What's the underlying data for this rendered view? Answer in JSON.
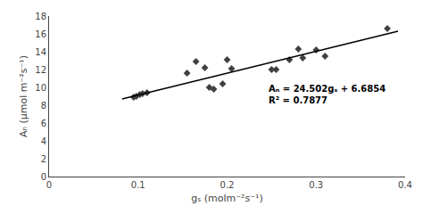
{
  "chart_data": {
    "type": "scatter",
    "xlabel": "gₛ (molm⁻²s⁻¹)",
    "ylabel": "Aₙ (μmol m⁻²s⁻¹)",
    "series": [
      {
        "type": "scatter",
        "marker": "diamond",
        "color": "#404040",
        "x": [
          0.095,
          0.098,
          0.102,
          0.105,
          0.11,
          0.155,
          0.165,
          0.175,
          0.18,
          0.185,
          0.195,
          0.2,
          0.205,
          0.25,
          0.255,
          0.27,
          0.28,
          0.285,
          0.3,
          0.31,
          0.38
        ],
        "values": [
          8.9,
          9.0,
          9.2,
          9.3,
          9.4,
          11.6,
          12.9,
          12.2,
          10.0,
          9.8,
          10.4,
          13.1,
          12.1,
          12.0,
          12.0,
          13.1,
          14.3,
          13.3,
          14.2,
          13.5,
          16.6
        ]
      },
      {
        "type": "line",
        "line_style": "solid",
        "color": "#000000",
        "x": [
          0.082,
          0.392
        ],
        "values": [
          8.694564,
          16.290184
        ]
      }
    ],
    "annotations": [
      {
        "text": [
          "Aₙ = 24.502gₛ + 6.6854",
          "R² = 0.7877"
        ],
        "x": 0.245,
        "y": 7.8
      }
    ],
    "xlim": [
      0,
      0.4
    ],
    "ylim": [
      0,
      18
    ],
    "xticks": [
      0,
      0.1,
      0.2,
      0.3,
      0.4
    ],
    "yticks": [
      0,
      2,
      4,
      6,
      8,
      10,
      12,
      14,
      16,
      18
    ],
    "grid": false
  }
}
